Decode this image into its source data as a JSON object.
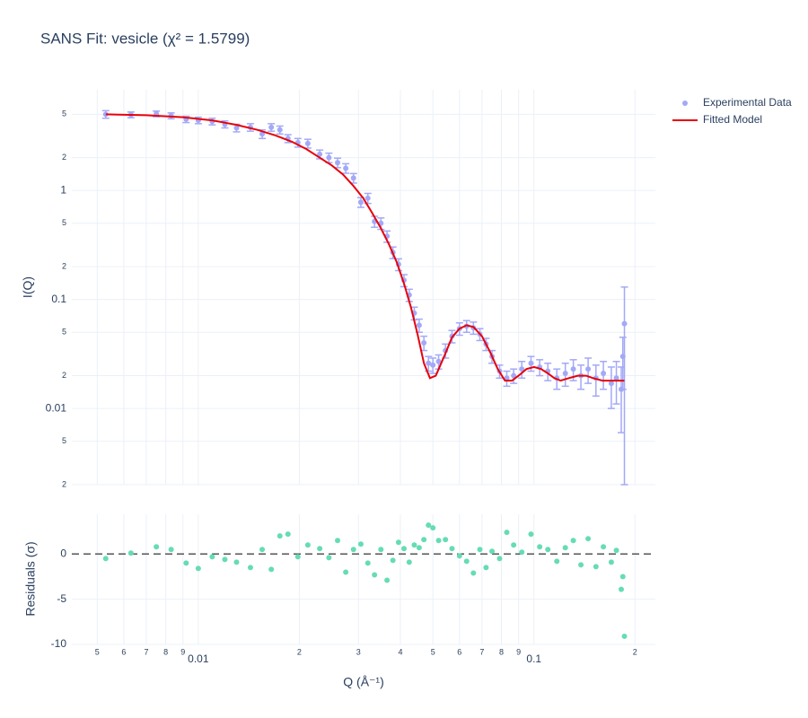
{
  "chart_data": [
    {
      "type": "scatter",
      "title": "SANS Fit: vesicle (χ² = 1.5799)",
      "y_label": "I(Q)",
      "log_x": true,
      "log_y": true,
      "legend": "top-right",
      "x": [
        0.0053,
        0.0063,
        0.0075,
        0.0083,
        0.0092,
        0.01,
        0.011,
        0.012,
        0.013,
        0.0143,
        0.0155,
        0.0165,
        0.0175,
        0.0185,
        0.0198,
        0.0212,
        0.023,
        0.0245,
        0.026,
        0.0275,
        0.029,
        0.0305,
        0.032,
        0.0335,
        0.035,
        0.0365,
        0.038,
        0.0395,
        0.041,
        0.0425,
        0.044,
        0.0455,
        0.047,
        0.0485,
        0.05,
        0.052,
        0.0545,
        0.057,
        0.06,
        0.063,
        0.066,
        0.069,
        0.072,
        0.075,
        0.079,
        0.083,
        0.087,
        0.092,
        0.098,
        0.104,
        0.11,
        0.117,
        0.124,
        0.131,
        0.138,
        0.145,
        0.153,
        0.161,
        0.17,
        0.176,
        0.182,
        0.184,
        0.186
      ],
      "ylim": [
        0.002,
        8.4
      ],
      "yticks": [
        {
          "value": 0.002,
          "label": "2"
        },
        {
          "value": 0.005,
          "label": "5"
        },
        0.01,
        {
          "value": 0.02,
          "label": "2"
        },
        {
          "value": 0.05,
          "label": "5"
        },
        0.1,
        {
          "value": 0.2,
          "label": "2"
        },
        {
          "value": 0.5,
          "label": "5"
        },
        1,
        2,
        5
      ],
      "series": [
        {
          "name": "Experimental Data",
          "color": "#a3a9f7",
          "mode": "markers",
          "values": [
            5.0,
            4.95,
            5.05,
            4.85,
            4.5,
            4.4,
            4.3,
            4.05,
            3.75,
            3.8,
            3.3,
            3.8,
            3.6,
            3.0,
            2.75,
            2.7,
            2.15,
            2.0,
            1.8,
            1.6,
            1.3,
            0.78,
            0.85,
            0.52,
            0.5,
            0.38,
            0.27,
            0.21,
            0.15,
            0.11,
            0.075,
            0.058,
            0.04,
            0.026,
            0.025,
            0.027,
            0.034,
            0.046,
            0.054,
            0.057,
            0.055,
            0.048,
            0.039,
            0.03,
            0.022,
            0.019,
            0.02,
            0.023,
            0.026,
            0.024,
            0.022,
            0.019,
            0.021,
            0.023,
            0.02,
            0.023,
            0.019,
            0.021,
            0.017,
            0.019,
            0.015,
            0.03,
            0.06
          ],
          "errors": [
            0.4,
            0.3,
            0.3,
            0.3,
            0.3,
            0.3,
            0.3,
            0.3,
            0.3,
            0.3,
            0.3,
            0.3,
            0.3,
            0.25,
            0.25,
            0.25,
            0.2,
            0.2,
            0.18,
            0.16,
            0.13,
            0.08,
            0.09,
            0.06,
            0.06,
            0.045,
            0.033,
            0.026,
            0.019,
            0.014,
            0.01,
            0.008,
            0.006,
            0.004,
            0.004,
            0.004,
            0.005,
            0.006,
            0.007,
            0.007,
            0.007,
            0.006,
            0.005,
            0.004,
            0.003,
            0.003,
            0.003,
            0.004,
            0.004,
            0.004,
            0.004,
            0.004,
            0.005,
            0.005,
            0.005,
            0.006,
            0.006,
            0.006,
            0.007,
            0.008,
            0.009,
            0.015,
            0.07
          ]
        },
        {
          "name": "Fitted Model",
          "color": "#e8000b",
          "mode": "line",
          "x": [
            0.0053,
            0.007,
            0.009,
            0.011,
            0.013,
            0.015,
            0.017,
            0.019,
            0.021,
            0.023,
            0.025,
            0.027,
            0.029,
            0.031,
            0.033,
            0.035,
            0.037,
            0.039,
            0.041,
            0.043,
            0.045,
            0.047,
            0.049,
            0.051,
            0.054,
            0.057,
            0.06,
            0.063,
            0.066,
            0.07,
            0.074,
            0.078,
            0.082,
            0.086,
            0.09,
            0.095,
            0.1,
            0.105,
            0.11,
            0.115,
            0.12,
            0.127,
            0.135,
            0.143,
            0.15,
            0.16,
            0.17,
            0.18,
            0.186
          ],
          "values": [
            5.0,
            4.9,
            4.7,
            4.4,
            4.0,
            3.6,
            3.2,
            2.8,
            2.4,
            2.0,
            1.7,
            1.4,
            1.1,
            0.85,
            0.62,
            0.45,
            0.32,
            0.22,
            0.14,
            0.085,
            0.048,
            0.026,
            0.019,
            0.02,
            0.03,
            0.045,
            0.054,
            0.058,
            0.056,
            0.046,
            0.033,
            0.023,
            0.018,
            0.018,
            0.02,
            0.023,
            0.024,
            0.023,
            0.021,
            0.019,
            0.018,
            0.019,
            0.02,
            0.02,
            0.019,
            0.018,
            0.018,
            0.018,
            0.018
          ]
        }
      ]
    },
    {
      "type": "scatter",
      "y_label": "Residuals (σ)",
      "x_label": "Q (Å⁻¹)",
      "log_x": true,
      "hline": 0,
      "x": [
        0.0053,
        0.0063,
        0.0075,
        0.0083,
        0.0092,
        0.01,
        0.011,
        0.012,
        0.013,
        0.0143,
        0.0155,
        0.0165,
        0.0175,
        0.0185,
        0.0198,
        0.0212,
        0.023,
        0.0245,
        0.026,
        0.0275,
        0.029,
        0.0305,
        0.032,
        0.0335,
        0.035,
        0.0365,
        0.038,
        0.0395,
        0.041,
        0.0425,
        0.044,
        0.0455,
        0.047,
        0.0485,
        0.05,
        0.052,
        0.0545,
        0.057,
        0.06,
        0.063,
        0.066,
        0.069,
        0.072,
        0.075,
        0.079,
        0.083,
        0.087,
        0.092,
        0.098,
        0.104,
        0.11,
        0.117,
        0.124,
        0.131,
        0.138,
        0.145,
        0.153,
        0.161,
        0.17,
        0.176,
        0.182,
        0.184,
        0.186
      ],
      "xlim": [
        0.0042,
        0.23
      ],
      "xticks": [
        {
          "value": 0.005,
          "label": "5"
        },
        {
          "value": 0.006,
          "label": "6"
        },
        {
          "value": 0.007,
          "label": "7"
        },
        {
          "value": 0.008,
          "label": "8"
        },
        {
          "value": 0.009,
          "label": "9"
        },
        0.01,
        {
          "value": 0.02,
          "label": "2"
        },
        {
          "value": 0.03,
          "label": "3"
        },
        {
          "value": 0.04,
          "label": "4"
        },
        {
          "value": 0.05,
          "label": "5"
        },
        {
          "value": 0.06,
          "label": "6"
        },
        {
          "value": 0.07,
          "label": "7"
        },
        {
          "value": 0.08,
          "label": "8"
        },
        {
          "value": 0.09,
          "label": "9"
        },
        0.1,
        {
          "value": 0.2,
          "label": "2"
        }
      ],
      "ylim": [
        -10,
        4.4
      ],
      "yticks": [
        -10,
        -5,
        0
      ],
      "series": [
        {
          "color": "#66dcb4",
          "values": [
            -0.5,
            0.1,
            0.8,
            0.5,
            -1.0,
            -1.6,
            -0.3,
            -0.6,
            -0.9,
            -1.5,
            0.5,
            -1.7,
            2.0,
            2.2,
            -0.3,
            1.0,
            0.6,
            -0.4,
            1.5,
            -2.0,
            0.5,
            1.1,
            -1.0,
            -2.3,
            0.5,
            -2.9,
            -0.7,
            1.3,
            0.6,
            -0.9,
            1.0,
            0.7,
            1.6,
            3.2,
            2.9,
            1.5,
            1.6,
            0.6,
            -0.2,
            -0.8,
            -2.1,
            0.5,
            -1.5,
            0.3,
            -0.5,
            2.4,
            1.0,
            0.2,
            2.2,
            0.8,
            0.5,
            -0.8,
            0.7,
            1.5,
            -1.2,
            1.7,
            -1.4,
            0.8,
            -0.9,
            0.4,
            -3.9,
            -2.5,
            -9.1
          ]
        }
      ]
    }
  ]
}
